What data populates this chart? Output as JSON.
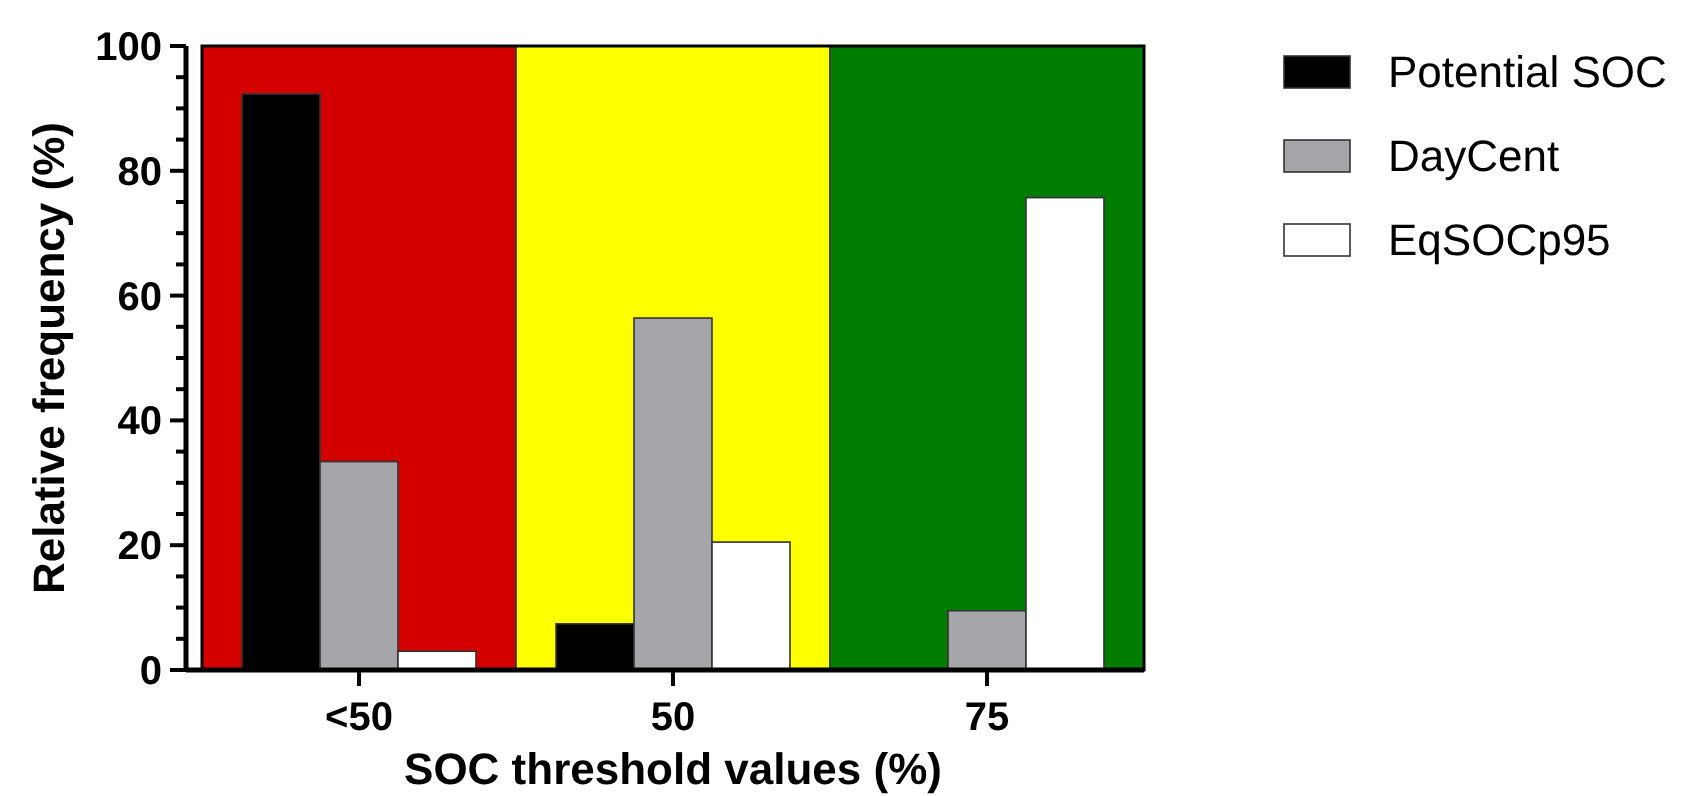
{
  "chart_data": {
    "type": "bar",
    "xlabel": "SOC threshold values (%)",
    "ylabel": "Relative frequency (%)",
    "categories": [
      "<50",
      "50",
      "75"
    ],
    "series": [
      {
        "name": "Potential SOC",
        "color": "#000000",
        "values": [
          92.3,
          7.4,
          0
        ]
      },
      {
        "name": "DayCent",
        "color": "#a6a6aa",
        "values": [
          33.4,
          56.4,
          9.5
        ]
      },
      {
        "name": "EqSOCp95",
        "color": "#ffffff",
        "values": [
          3,
          20.5,
          75.7
        ]
      }
    ],
    "ylim": [
      0,
      100
    ],
    "yticks": [
      0,
      {
        "value": 5,
        "label": null
      },
      {
        "value": 10,
        "label": null
      },
      {
        "value": 15,
        "label": null
      },
      20,
      {
        "value": 25,
        "label": null
      },
      {
        "value": 30,
        "label": null
      },
      {
        "value": 35,
        "label": null
      },
      40,
      {
        "value": 45,
        "label": null
      },
      {
        "value": 50,
        "label": null
      },
      {
        "value": 55,
        "label": null
      },
      60,
      {
        "value": 65,
        "label": null
      },
      {
        "value": 70,
        "label": null
      },
      {
        "value": 75,
        "label": null
      },
      80,
      {
        "value": 85,
        "label": null
      },
      {
        "value": 90,
        "label": null
      },
      {
        "value": 95,
        "label": null
      },
      100
    ],
    "bands": [
      {
        "axis": "x",
        "from": "<50",
        "to": "<50",
        "color": "#d40000"
      },
      {
        "axis": "x",
        "from": "50",
        "to": "50",
        "color": "#ffff00"
      },
      {
        "axis": "x",
        "from": "75",
        "to": "75",
        "color": "#007d00"
      }
    ],
    "legend": "right"
  }
}
